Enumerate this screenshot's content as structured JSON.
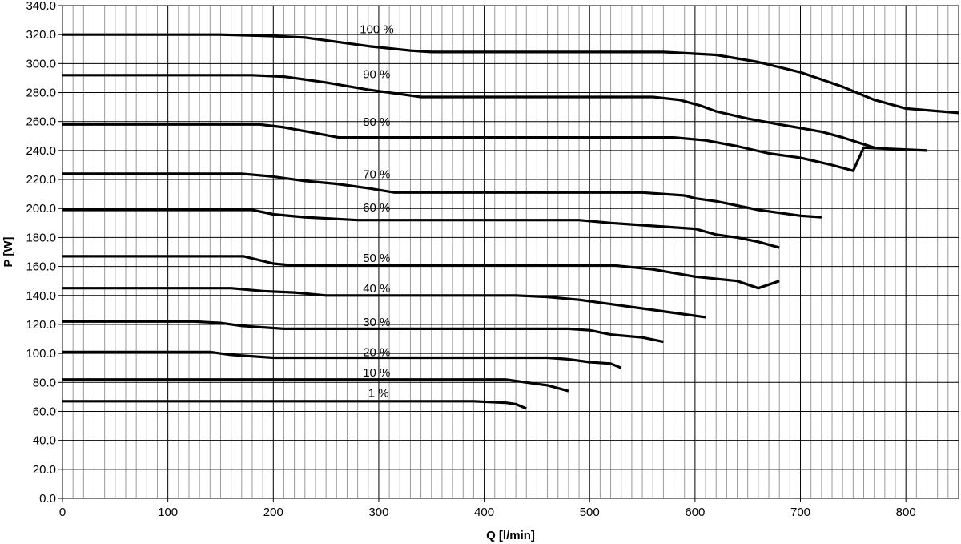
{
  "chart_data": {
    "type": "line",
    "title": "",
    "xlabel": "Q [l/min]",
    "ylabel": "P [W]",
    "xlim": [
      0,
      850
    ],
    "ylim": [
      0,
      340
    ],
    "x_ticks": [
      0,
      100,
      200,
      300,
      400,
      500,
      600,
      700,
      800
    ],
    "x_tick_labels": [
      "0",
      "100",
      "200",
      "300",
      "400",
      "500",
      "600",
      "700",
      "800"
    ],
    "y_ticks": [
      0,
      20,
      40,
      60,
      80,
      100,
      120,
      140,
      160,
      180,
      200,
      220,
      240,
      260,
      280,
      300,
      320,
      340
    ],
    "y_tick_labels": [
      "0.0",
      "20.0",
      "40.0",
      "60.0",
      "80.0",
      "100.0",
      "120.0",
      "140.0",
      "160.0",
      "180.0",
      "200.0",
      "220.0",
      "240.0",
      "260.0",
      "280.0",
      "300.0",
      "320.0",
      "340.0"
    ],
    "x_minor_step": 10,
    "y_minor_step": 20,
    "grid": true,
    "legend": "none",
    "series": [
      {
        "name": "100 %",
        "label_at": [
          282,
          321
        ],
        "x": [
          0,
          150,
          200,
          230,
          260,
          290,
          330,
          350,
          570,
          620,
          660,
          700,
          740,
          770,
          800,
          850
        ],
        "y": [
          320,
          320,
          319,
          318,
          315,
          312,
          309,
          308,
          308,
          306,
          301,
          294,
          284,
          275,
          269,
          266
        ]
      },
      {
        "name": "90 %",
        "label_at": [
          285,
          290
        ],
        "x": [
          0,
          180,
          210,
          250,
          290,
          320,
          340,
          560,
          585,
          605,
          620,
          650,
          680,
          720,
          740,
          770
        ],
        "y": [
          292,
          292,
          291,
          287,
          282,
          279,
          277,
          277,
          275,
          271,
          267,
          262,
          258,
          253,
          249,
          242
        ]
      },
      {
        "name": "80 %",
        "label_at": [
          285,
          257
        ],
        "x": [
          0,
          187,
          210,
          240,
          262,
          580,
          610,
          640,
          670,
          700,
          730,
          750,
          760,
          820
        ],
        "y": [
          258,
          258,
          256,
          252,
          249,
          249,
          247,
          243,
          238,
          235,
          230,
          226,
          242,
          240
        ]
      },
      {
        "name": "70 %",
        "label_at": [
          285,
          221
        ],
        "x": [
          0,
          170,
          200,
          230,
          260,
          290,
          315,
          550,
          590,
          600,
          620,
          640,
          660,
          680,
          700,
          720
        ],
        "y": [
          224,
          224,
          222,
          219,
          217,
          214,
          211,
          211,
          209,
          207,
          205,
          202,
          199,
          197,
          195,
          194
        ]
      },
      {
        "name": "60 %",
        "label_at": [
          285,
          198
        ],
        "x": [
          0,
          180,
          200,
          230,
          280,
          490,
          520,
          540,
          600,
          620,
          640,
          660,
          680
        ],
        "y": [
          199,
          199,
          196,
          194,
          192,
          192,
          190,
          189,
          186,
          182,
          180,
          177,
          173
        ]
      },
      {
        "name": "50 %",
        "label_at": [
          285,
          163
        ],
        "x": [
          0,
          172,
          200,
          215,
          520,
          560,
          600,
          640,
          660,
          680
        ],
        "y": [
          167,
          167,
          162,
          161,
          161,
          158,
          153,
          150,
          145,
          150
        ]
      },
      {
        "name": "40 %",
        "label_at": [
          285,
          142
        ],
        "x": [
          0,
          160,
          190,
          220,
          250,
          430,
          460,
          490,
          520,
          550,
          580,
          610
        ],
        "y": [
          145,
          145,
          143,
          142,
          140,
          140,
          139,
          137,
          134,
          131,
          128,
          125
        ]
      },
      {
        "name": "30 %",
        "label_at": [
          285,
          119
        ],
        "x": [
          0,
          125,
          150,
          170,
          210,
          480,
          500,
          520,
          550,
          570
        ],
        "y": [
          122,
          122,
          121,
          119,
          117,
          117,
          116,
          113,
          111,
          108
        ]
      },
      {
        "name": "20 %",
        "label_at": [
          285,
          98
        ],
        "x": [
          0,
          140,
          160,
          180,
          200,
          460,
          480,
          500,
          520,
          530
        ],
        "y": [
          101,
          101,
          99,
          98,
          97,
          97,
          96,
          94,
          93,
          90
        ]
      },
      {
        "name": "10 %",
        "label_at": [
          285,
          84
        ],
        "x": [
          0,
          130,
          150,
          420,
          440,
          460,
          480
        ],
        "y": [
          82,
          82,
          82,
          82,
          80,
          78,
          74
        ]
      },
      {
        "name": "1 %",
        "label_at": [
          290,
          70
        ],
        "x": [
          0,
          390,
          420,
          430,
          440
        ],
        "y": [
          67,
          67,
          66,
          65,
          62
        ]
      }
    ]
  }
}
